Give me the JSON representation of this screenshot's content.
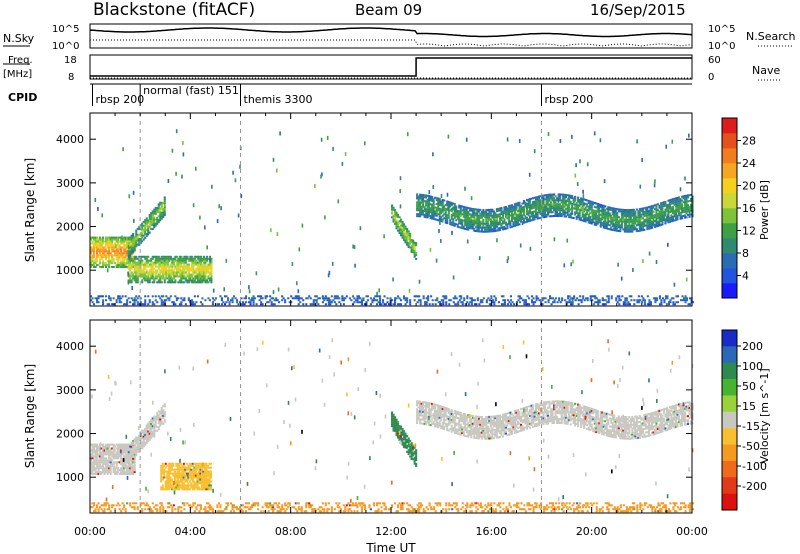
{
  "header": {
    "station": "Blackstone (fitACF)",
    "beam": "Beam 09",
    "date": "16/Sep/2015"
  },
  "left_labels": {
    "nsky": "N.Sky",
    "freq_line1": "Freq.",
    "freq_line2": "[MHz]",
    "cpid": "CPID"
  },
  "right_labels": {
    "nsearch": "N.Search",
    "nave": "Nave"
  },
  "noise_axis": {
    "left_ticks": [
      "10^5",
      "10^0"
    ],
    "right_ticks": [
      "10^5",
      "10^0"
    ]
  },
  "freq_axis": {
    "left_ticks": [
      "18",
      "8"
    ],
    "right_ticks": [
      "60",
      "0"
    ]
  },
  "cpid_labels": [
    {
      "text": "rbsp 200",
      "time": 0.1
    },
    {
      "text": "normal (fast) 151",
      "time": 2.0
    },
    {
      "text": "themis 3300",
      "time": 6.0
    },
    {
      "text": "rbsp 200",
      "time": 18.0
    }
  ],
  "chart_data": [
    {
      "type": "heatmap",
      "name": "power",
      "xlabel": "",
      "ylabel": "Slant Range [km]",
      "xlim": [
        0,
        24
      ],
      "ylim": [
        180,
        4600
      ],
      "yticks": [
        1000,
        2000,
        3000,
        4000
      ],
      "colorbar": {
        "label": "Power [dB]",
        "ticks": [
          "4",
          "8",
          "12",
          "16",
          "20",
          "24",
          "28"
        ],
        "colors": [
          "#1a1aff",
          "#2255dd",
          "#2a6cb4",
          "#2f8a70",
          "#3da044",
          "#7cc23a",
          "#c8d83a",
          "#f5d020",
          "#f5a623",
          "#f07d1e",
          "#e5501b",
          "#dd1c1c"
        ],
        "range": [
          0,
          32
        ]
      },
      "echo_regions": [
        {
          "t0": 0.0,
          "t1": 1.8,
          "r0": 1050,
          "r1": 1750,
          "level": 26
        },
        {
          "t0": 1.5,
          "t1": 3.0,
          "r0": 1500,
          "r1": 2500,
          "level": 16
        },
        {
          "t0": 1.5,
          "t1": 4.8,
          "r0": 700,
          "r1": 1300,
          "level": 20
        },
        {
          "t0": 12.0,
          "t1": 13.0,
          "r0": 1100,
          "r1": 2300,
          "level": 17
        },
        {
          "t0": 13.0,
          "t1": 24.0,
          "r0": 1750,
          "r1": 3000,
          "level": 12
        },
        {
          "t0": 0.0,
          "t1": 24.0,
          "r0": 200,
          "r1": 420,
          "level": 6
        }
      ]
    },
    {
      "type": "heatmap",
      "name": "velocity",
      "xlabel": "Time UT",
      "ylabel": "Slant Range [km]",
      "xlim": [
        0,
        24
      ],
      "ylim": [
        180,
        4600
      ],
      "yticks": [
        1000,
        2000,
        3000,
        4000
      ],
      "xticks": [
        "00:00",
        "04:00",
        "08:00",
        "12:00",
        "16:00",
        "20:00",
        "00:00"
      ],
      "colorbar": {
        "label": "Velocity [m s^-1]",
        "ticks": [
          "200",
          "100",
          "50",
          "15",
          "-15",
          "-50",
          "-100",
          "-200"
        ],
        "colors": [
          "#1a2cc8",
          "#2a68b8",
          "#2f8a50",
          "#48b232",
          "#9ad23a",
          "#c8c8c0",
          "#f8c030",
          "#f59a20",
          "#f06a1c",
          "#e03a1a",
          "#dd1010"
        ]
      },
      "echo_regions": [
        {
          "t0": 0.0,
          "t1": 1.8,
          "r0": 1050,
          "r1": 1750,
          "level": "ground"
        },
        {
          "t0": 1.5,
          "t1": 3.0,
          "r0": 1500,
          "r1": 2500,
          "level": "ground"
        },
        {
          "t0": 2.8,
          "t1": 4.8,
          "r0": 700,
          "r1": 1300,
          "level": "-20"
        },
        {
          "t0": 12.0,
          "t1": 13.0,
          "r0": 1100,
          "r1": 2300,
          "level": "40"
        },
        {
          "t0": 13.0,
          "t1": 24.0,
          "r0": 1750,
          "r1": 3000,
          "level": "ground"
        },
        {
          "t0": 0.0,
          "t1": 24.0,
          "r0": 200,
          "r1": 420,
          "level": "-40"
        }
      ]
    }
  ]
}
